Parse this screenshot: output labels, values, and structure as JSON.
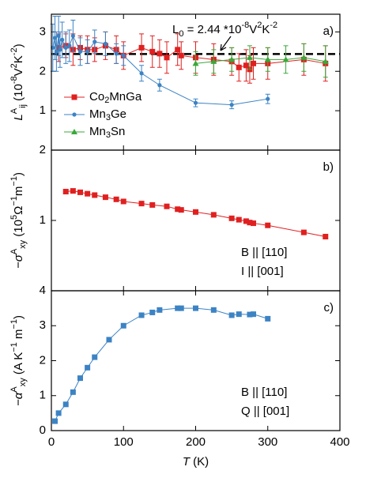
{
  "chart_data": [
    {
      "type": "errorbar",
      "panel_label": "a)",
      "ylabel": [
        {
          "text": "L",
          "italic": true
        },
        {
          "text": "A",
          "pos": "sup"
        },
        {
          "text": "ij",
          "pos": "sub"
        },
        {
          "text": " (10"
        },
        {
          "text": "-8",
          "pos": "sup"
        },
        {
          "text": "V"
        },
        {
          "text": "2",
          "pos": "sup"
        },
        {
          "text": "K"
        },
        {
          "text": "-2",
          "pos": "sup"
        },
        {
          "text": ")"
        }
      ],
      "annotation": [
        {
          "text": "L"
        },
        {
          "text": "0",
          "pos": "sub"
        },
        {
          "text": " = 2.44 *10"
        },
        {
          "text": "-8",
          "pos": "sup"
        },
        {
          "text": "V"
        },
        {
          "text": "2",
          "pos": "sup"
        },
        {
          "text": "K"
        },
        {
          "text": "-2",
          "pos": "sup"
        }
      ],
      "reference_line": 2.44,
      "xlim": [
        0,
        400
      ],
      "xticks": [
        0,
        100,
        200,
        300,
        400
      ],
      "ylim": [
        0,
        3.45
      ],
      "yticks": [
        1,
        2,
        3
      ],
      "legend": "left",
      "series": [
        {
          "name": "Co2MnGa",
          "color": "#e02020",
          "marker": "square",
          "x": [
            10,
            20,
            30,
            40,
            50,
            60,
            75,
            90,
            100,
            125,
            140,
            150,
            160,
            175,
            180,
            200,
            225,
            250,
            260,
            270,
            275,
            280,
            300,
            350,
            380
          ],
          "values": [
            2.6,
            2.65,
            2.55,
            2.6,
            2.55,
            2.55,
            2.65,
            2.55,
            2.4,
            2.6,
            2.5,
            2.45,
            2.35,
            2.55,
            2.4,
            2.35,
            2.3,
            2.25,
            2.1,
            2.15,
            2.05,
            2.2,
            2.2,
            2.3,
            2.2
          ],
          "errors": [
            0.35,
            0.3,
            0.4,
            0.3,
            0.35,
            0.3,
            0.35,
            0.35,
            0.35,
            0.35,
            0.4,
            0.35,
            0.4,
            0.4,
            0.35,
            0.4,
            0.4,
            0.35,
            0.35,
            0.4,
            0.35,
            0.4,
            0.4,
            0.4,
            0.45
          ]
        },
        {
          "name": "Mn3Ge",
          "color": "#3c83c4",
          "marker": "circle",
          "x": [
            2,
            5,
            7,
            10,
            12,
            15,
            20,
            25,
            30,
            40,
            50,
            60,
            75,
            90,
            100,
            125,
            150,
            200,
            250,
            300
          ],
          "values": [
            2.6,
            2.85,
            2.5,
            2.9,
            2.55,
            2.8,
            2.6,
            2.65,
            2.9,
            2.5,
            2.5,
            2.75,
            2.7,
            2.45,
            2.4,
            1.95,
            1.65,
            1.2,
            1.15,
            1.3
          ],
          "errors": [
            0.6,
            0.55,
            0.5,
            0.5,
            0.45,
            0.45,
            0.4,
            0.4,
            0.4,
            0.35,
            0.3,
            0.3,
            0.3,
            0.25,
            0.25,
            0.2,
            0.15,
            0.1,
            0.1,
            0.12
          ]
        },
        {
          "name": "Mn3Sn",
          "color": "#3aa83a",
          "marker": "triangle",
          "x": [
            200,
            225,
            250,
            275,
            300,
            325,
            350,
            380
          ],
          "values": [
            2.2,
            2.25,
            2.3,
            2.35,
            2.3,
            2.3,
            2.35,
            2.25
          ],
          "errors": [
            0.3,
            0.3,
            0.3,
            0.3,
            0.3,
            0.35,
            0.35,
            0.4
          ]
        }
      ]
    },
    {
      "type": "line",
      "panel_label": "b)",
      "ylabel": [
        {
          "text": "−σ",
          "italic": true
        },
        {
          "text": "A",
          "pos": "sup"
        },
        {
          "text": "xy",
          "pos": "sub"
        },
        {
          "text": " (10"
        },
        {
          "text": "5",
          "pos": "sup"
        },
        {
          "text": "Ω"
        },
        {
          "text": "−1",
          "pos": "sup"
        },
        {
          "text": "m"
        },
        {
          "text": "−1",
          "pos": "sup"
        },
        {
          "text": ")"
        }
      ],
      "notes": [
        "B || [110]",
        "I || [001]"
      ],
      "xlim": [
        0,
        400
      ],
      "xticks": [
        0,
        100,
        200,
        300,
        400
      ],
      "ylim": [
        0,
        2
      ],
      "yticks": [
        1,
        2
      ],
      "color": "#e02020",
      "marker": "square",
      "x": [
        20,
        30,
        40,
        50,
        60,
        75,
        90,
        100,
        125,
        140,
        160,
        175,
        180,
        200,
        225,
        250,
        260,
        270,
        275,
        280,
        300,
        350,
        380
      ],
      "values": [
        1.41,
        1.42,
        1.4,
        1.38,
        1.36,
        1.33,
        1.3,
        1.27,
        1.24,
        1.22,
        1.2,
        1.16,
        1.15,
        1.12,
        1.08,
        1.03,
        1.01,
        0.99,
        0.97,
        0.96,
        0.93,
        0.83,
        0.77
      ]
    },
    {
      "type": "line",
      "panel_label": "c)",
      "ylabel": [
        {
          "text": "−α",
          "italic": true
        },
        {
          "text": "A",
          "pos": "sup"
        },
        {
          "text": "xy",
          "pos": "sub"
        },
        {
          "text": " (A K"
        },
        {
          "text": "−1",
          "pos": "sup"
        },
        {
          "text": " m"
        },
        {
          "text": "−1",
          "pos": "sup"
        },
        {
          "text": ")"
        }
      ],
      "notes": [
        "B || [110]",
        "Q || [001]"
      ],
      "xlabel": [
        {
          "text": "T",
          "italic": true
        },
        {
          "text": " (K)"
        }
      ],
      "xlim": [
        0,
        400
      ],
      "xticks": [
        0,
        100,
        200,
        300,
        400
      ],
      "ylim": [
        0,
        4
      ],
      "yticks": [
        0,
        1,
        2,
        3,
        4
      ],
      "color": "#3c83c4",
      "marker": "square",
      "x": [
        5,
        10,
        20,
        30,
        40,
        50,
        60,
        80,
        100,
        125,
        140,
        150,
        175,
        180,
        200,
        225,
        250,
        260,
        275,
        280,
        300
      ],
      "values": [
        0.27,
        0.5,
        0.75,
        1.1,
        1.5,
        1.8,
        2.1,
        2.6,
        3.0,
        3.3,
        3.38,
        3.45,
        3.5,
        3.5,
        3.5,
        3.45,
        3.3,
        3.33,
        3.32,
        3.33,
        3.2
      ]
    }
  ]
}
